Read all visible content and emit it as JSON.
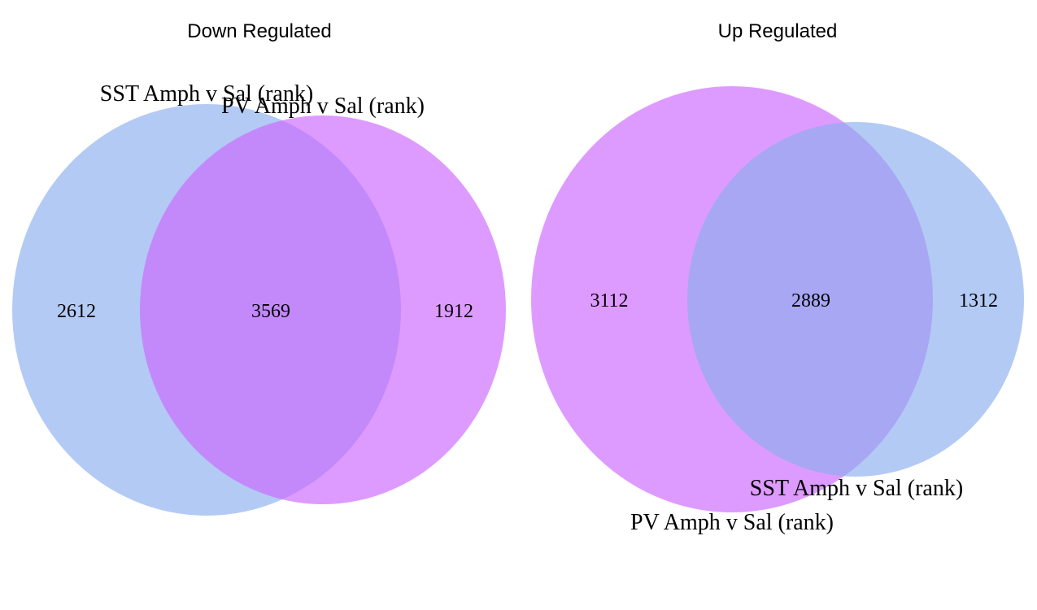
{
  "colors": {
    "sst": "#8aaeee",
    "pv": "#cc66ff",
    "sst_opacity": 0.65,
    "pv_opacity": 0.65
  },
  "panels": [
    {
      "title": "Down Regulated",
      "sets": {
        "sst": "SST Amph v Sal (rank)",
        "pv": "PV Amph v Sal (rank)"
      },
      "counts": {
        "sst_only": "2612",
        "both": "3569",
        "pv_only": "1912"
      }
    },
    {
      "title": "Up Regulated",
      "sets": {
        "sst": "SST Amph v Sal (rank)",
        "pv": "PV Amph v Sal (rank)"
      },
      "counts": {
        "pv_only": "3112",
        "both": "2889",
        "sst_only": "1312"
      }
    }
  ]
}
